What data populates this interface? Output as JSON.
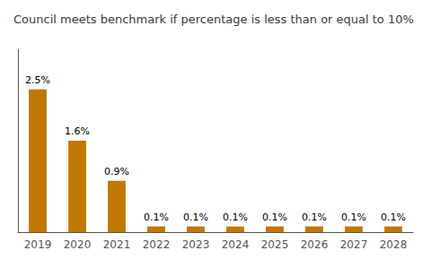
{
  "chart_data": {
    "type": "bar",
    "title": "Council meets benchmark if percentage is less than or equal to 10%",
    "categories": [
      "2019",
      "2020",
      "2021",
      "2022",
      "2023",
      "2024",
      "2025",
      "2026",
      "2027",
      "2028"
    ],
    "values": [
      2.5,
      1.6,
      0.9,
      0.1,
      0.1,
      0.1,
      0.1,
      0.1,
      0.1,
      0.1
    ],
    "value_labels": [
      "2.5%",
      "1.6%",
      "0.9%",
      "0.1%",
      "0.1%",
      "0.1%",
      "0.1%",
      "0.1%",
      "0.1%",
      "0.1%"
    ],
    "data_labels": true,
    "color": "#C07800",
    "ylim": [
      0,
      3.2
    ],
    "grid": false,
    "tick_labels": "x"
  }
}
